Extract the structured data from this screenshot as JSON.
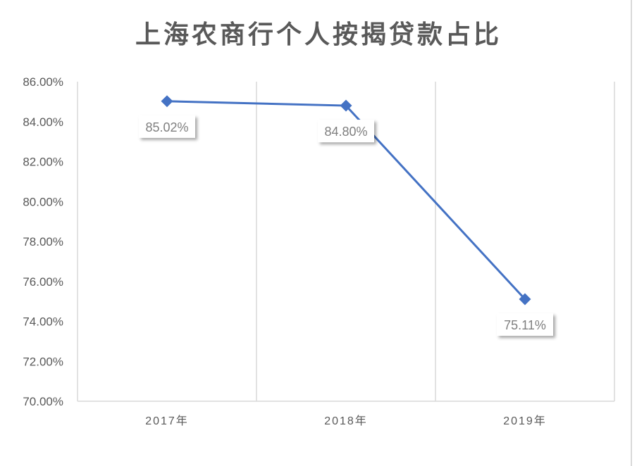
{
  "chart_data": {
    "type": "line",
    "title": "上海农商行个人按揭贷款占比",
    "categories": [
      "2017年",
      "2018年",
      "2019年"
    ],
    "series": [
      {
        "values": [
          85.02,
          84.8,
          75.11
        ],
        "color": "#4472c4"
      }
    ],
    "data_labels": [
      "85.02%",
      "84.80%",
      "75.11%"
    ],
    "ylim": [
      70,
      86
    ],
    "yticks": [
      "70.00%",
      "72.00%",
      "74.00%",
      "76.00%",
      "78.00%",
      "80.00%",
      "82.00%",
      "84.00%",
      "86.00%"
    ],
    "grid": "vertical",
    "legend": "none"
  }
}
